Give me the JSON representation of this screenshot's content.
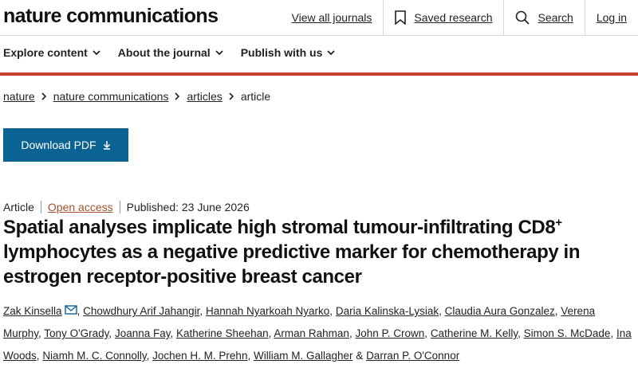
{
  "header": {
    "brand": "nature communications",
    "links": [
      "View all journals",
      "Saved research",
      "Search",
      "Log in"
    ],
    "menus": [
      "Explore content",
      "About the journal",
      "Publish with us"
    ]
  },
  "breadcrumbs": [
    "nature",
    "nature communications",
    "articles",
    "article"
  ],
  "download_button": "Download PDF",
  "article": {
    "type": "Article",
    "access": "Open access",
    "published": "Published: 23 June 2026",
    "title_parts": [
      "Spatial analyses implicate high stromal tumour-infiltrating CD8",
      "+",
      " lymphocytes as a negative predictive marker for chemotherapy in estrogen receptor-positive breast cancer"
    ],
    "authors": [
      "Zak Kinsella",
      "Chowdhury Arif Jahangir",
      "Hannah Nyarkoah Nyarko",
      "Daria Kalinska-Lysiak",
      "Claudia Aura Gonzalez",
      "Verena Murphy",
      "Tony O'Grady",
      "Joanna Fay",
      "Katherine Sheehan",
      "Arman Rahman",
      "John P. Crown",
      "Catherine M. Kelly",
      "Simon S. McDade",
      "Ina Woods",
      "Niamh M. C. Connolly",
      "Jochen H. M. Prehn",
      "William M. Gallagher",
      "Darran P. O'Connor"
    ],
    "author_separator": ",",
    "last_separator": "&"
  }
}
